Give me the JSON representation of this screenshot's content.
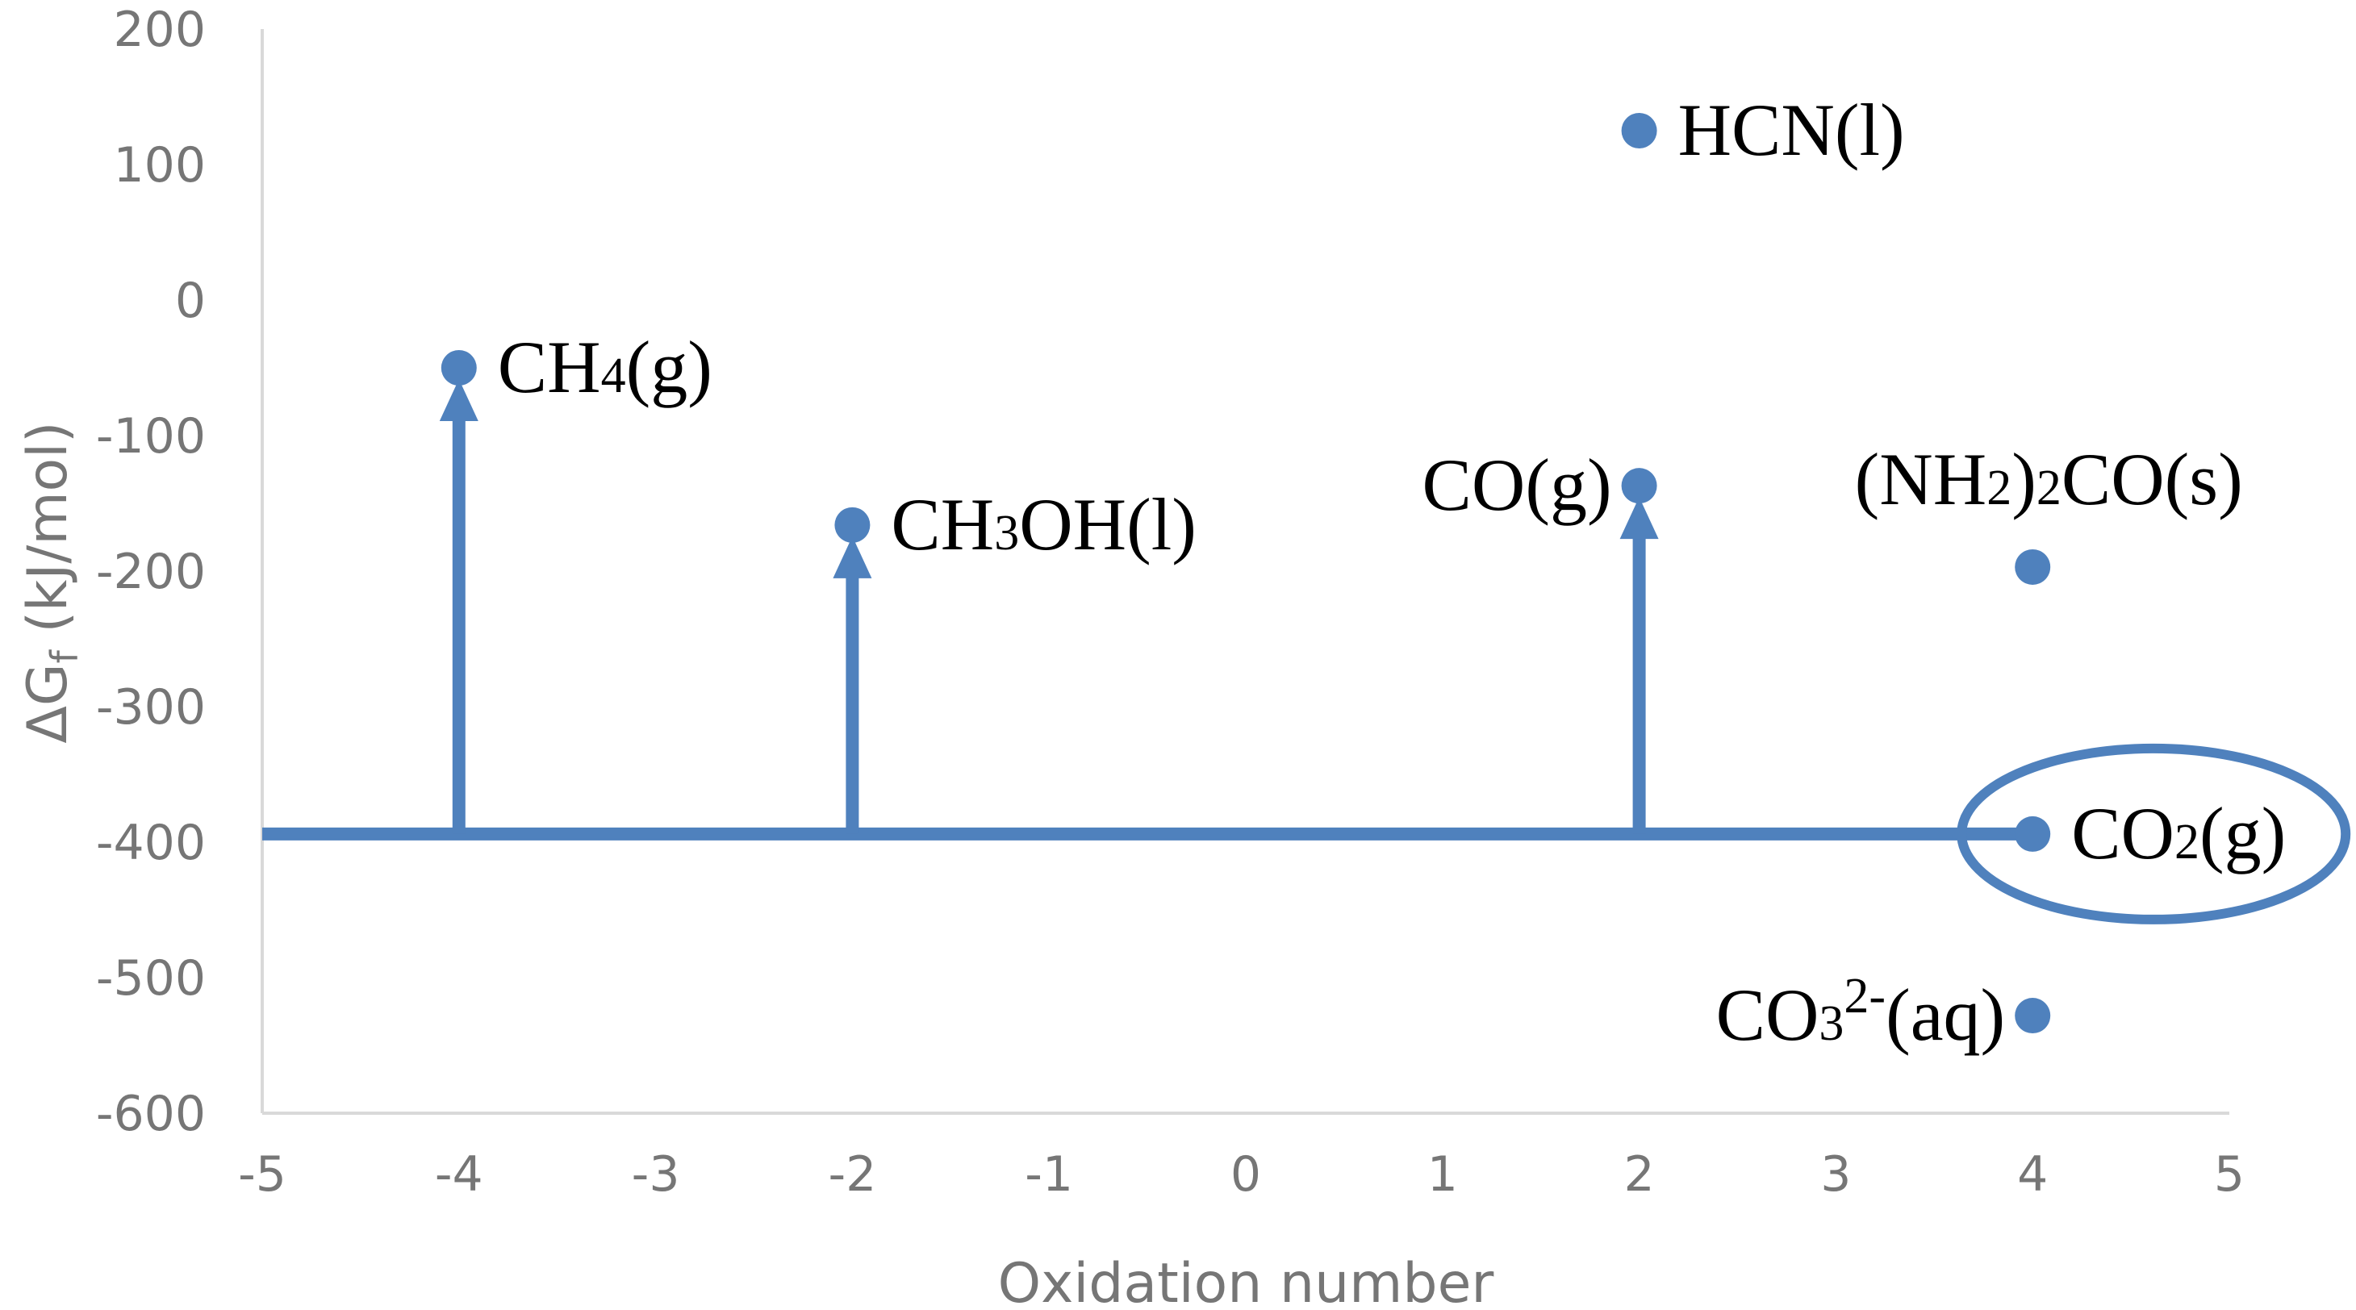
{
  "chart_data": {
    "type": "scatter",
    "xlabel": "Oxidation number",
    "ylabel": {
      "main": "ΔG",
      "sub": "f",
      "rest": " (kJ/mol)"
    },
    "xlim": [
      -5,
      5
    ],
    "ylim": [
      -600,
      200
    ],
    "x_ticks": [
      -5,
      -4,
      -3,
      -2,
      -1,
      0,
      1,
      2,
      3,
      4,
      5
    ],
    "y_ticks": [
      -600,
      -500,
      -400,
      -300,
      -200,
      -100,
      0,
      100,
      200
    ],
    "grid": false,
    "marker_color": "#4f81bd",
    "points": [
      {
        "id": "ch4",
        "x": -4,
        "y": -50,
        "label": [
          {
            "t": "CH"
          },
          {
            "t": "4",
            "sub": true
          },
          {
            "t": "(g)"
          }
        ],
        "label_side": "right"
      },
      {
        "id": "ch3oh",
        "x": -2,
        "y": -166,
        "label": [
          {
            "t": "CH"
          },
          {
            "t": "3",
            "sub": true
          },
          {
            "t": "OH(l)"
          }
        ],
        "label_side": "right"
      },
      {
        "id": "hcn",
        "x": 2,
        "y": 125,
        "label": [
          {
            "t": "HCN(l)"
          }
        ],
        "label_side": "right"
      },
      {
        "id": "co",
        "x": 2,
        "y": -137,
        "label": [
          {
            "t": "CO(g)"
          }
        ],
        "label_side": "left"
      },
      {
        "id": "urea",
        "x": 4,
        "y": -197,
        "label": [
          {
            "t": "(NH"
          },
          {
            "t": "2",
            "sub": true
          },
          {
            "t": ")"
          },
          {
            "t": "2",
            "sub": true
          },
          {
            "t": "CO(s)"
          }
        ],
        "label_side": "above"
      },
      {
        "id": "co2",
        "x": 4,
        "y": -394,
        "label": [
          {
            "t": "CO"
          },
          {
            "t": "2",
            "sub": true
          },
          {
            "t": "(g)"
          }
        ],
        "label_side": "right",
        "circled": true
      },
      {
        "id": "co3",
        "x": 4,
        "y": -528,
        "label": [
          {
            "t": "CO"
          },
          {
            "t": "3",
            "sub": true
          },
          {
            "t": "2-",
            "sup": true
          },
          {
            "t": "(aq)"
          }
        ],
        "label_side": "left"
      }
    ],
    "baseline": {
      "y": -394,
      "x_from": -5,
      "x_to": 4
    },
    "arrows": [
      {
        "x": -4,
        "from_y": -394,
        "to_y": -50
      },
      {
        "x": -2,
        "from_y": -394,
        "to_y": -166
      },
      {
        "x": 2,
        "from_y": -394,
        "to_y": -137
      }
    ]
  }
}
